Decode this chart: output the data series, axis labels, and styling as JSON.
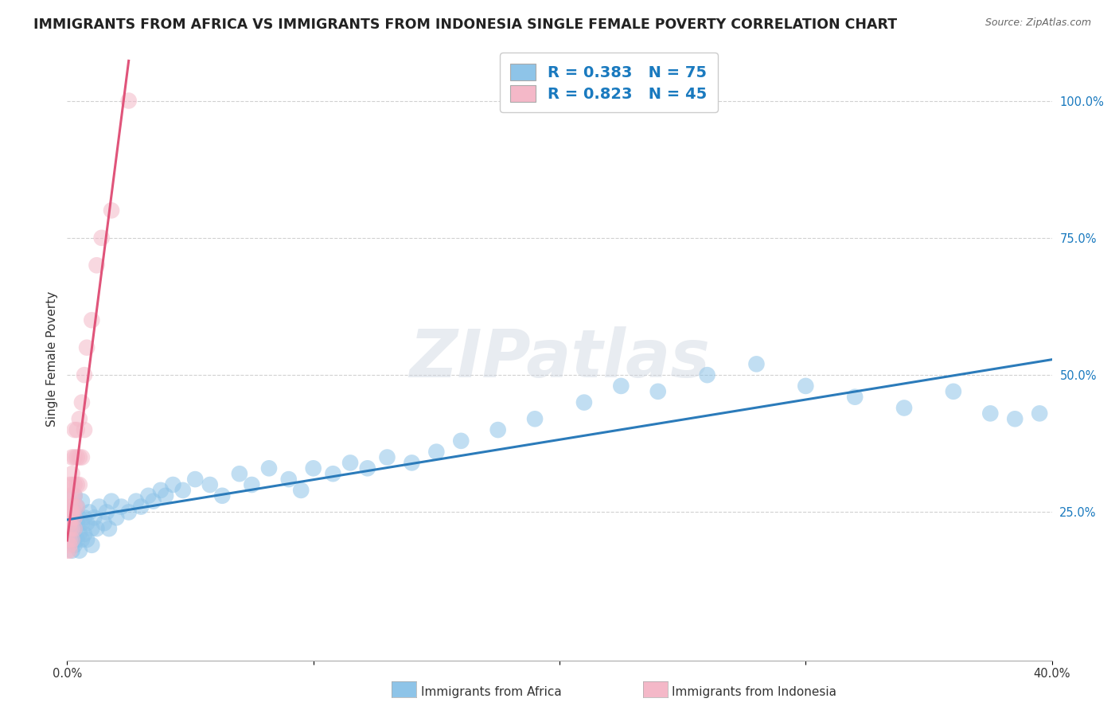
{
  "title": "IMMIGRANTS FROM AFRICA VS IMMIGRANTS FROM INDONESIA SINGLE FEMALE POVERTY CORRELATION CHART",
  "source_text": "Source: ZipAtlas.com",
  "ylabel": "Single Female Poverty",
  "watermark": "ZIPatlas",
  "xlim": [
    0.0,
    0.4
  ],
  "ylim": [
    -0.02,
    1.08
  ],
  "xtick_positions": [
    0.0,
    0.1,
    0.2,
    0.3,
    0.4
  ],
  "xtick_labels": [
    "0.0%",
    "",
    "",
    "",
    "40.0%"
  ],
  "yticks_right": [
    0.25,
    0.5,
    0.75,
    1.0
  ],
  "ytick_labels_right": [
    "25.0%",
    "50.0%",
    "75.0%",
    "100.0%"
  ],
  "africa_color": "#8ec4e8",
  "africa_color_line": "#2b7bba",
  "indonesia_color": "#f4b8c8",
  "indonesia_color_line": "#e0547a",
  "legend_color": "#1a7abf",
  "africa_R": 0.383,
  "africa_N": 75,
  "indonesia_R": 0.823,
  "indonesia_N": 45,
  "background_color": "#ffffff",
  "grid_color": "#cccccc",
  "title_fontsize": 12.5,
  "axis_label_fontsize": 11,
  "tick_fontsize": 10.5,
  "watermark_fontsize": 60,
  "watermark_color": "#cdd5e0",
  "watermark_alpha": 0.45,
  "africa_scatter_x": [
    0.001,
    0.001,
    0.001,
    0.002,
    0.002,
    0.002,
    0.002,
    0.003,
    0.003,
    0.003,
    0.003,
    0.004,
    0.004,
    0.004,
    0.005,
    0.005,
    0.005,
    0.006,
    0.006,
    0.006,
    0.007,
    0.007,
    0.008,
    0.008,
    0.009,
    0.01,
    0.01,
    0.011,
    0.012,
    0.013,
    0.015,
    0.016,
    0.017,
    0.018,
    0.02,
    0.022,
    0.025,
    0.028,
    0.03,
    0.033,
    0.035,
    0.038,
    0.04,
    0.043,
    0.047,
    0.052,
    0.058,
    0.063,
    0.07,
    0.075,
    0.082,
    0.09,
    0.095,
    0.1,
    0.108,
    0.115,
    0.122,
    0.13,
    0.14,
    0.15,
    0.16,
    0.175,
    0.19,
    0.21,
    0.225,
    0.24,
    0.26,
    0.28,
    0.3,
    0.32,
    0.34,
    0.36,
    0.375,
    0.385,
    0.395
  ],
  "africa_scatter_y": [
    0.2,
    0.22,
    0.24,
    0.18,
    0.21,
    0.23,
    0.26,
    0.19,
    0.22,
    0.25,
    0.28,
    0.2,
    0.23,
    0.26,
    0.18,
    0.21,
    0.24,
    0.2,
    0.23,
    0.27,
    0.21,
    0.24,
    0.2,
    0.23,
    0.25,
    0.19,
    0.22,
    0.24,
    0.22,
    0.26,
    0.23,
    0.25,
    0.22,
    0.27,
    0.24,
    0.26,
    0.25,
    0.27,
    0.26,
    0.28,
    0.27,
    0.29,
    0.28,
    0.3,
    0.29,
    0.31,
    0.3,
    0.28,
    0.32,
    0.3,
    0.33,
    0.31,
    0.29,
    0.33,
    0.32,
    0.34,
    0.33,
    0.35,
    0.34,
    0.36,
    0.38,
    0.4,
    0.42,
    0.45,
    0.48,
    0.47,
    0.5,
    0.52,
    0.48,
    0.46,
    0.44,
    0.47,
    0.43,
    0.42,
    0.43
  ],
  "indonesia_scatter_x": [
    0.0,
    0.0,
    0.001,
    0.001,
    0.001,
    0.001,
    0.001,
    0.001,
    0.001,
    0.001,
    0.001,
    0.001,
    0.002,
    0.002,
    0.002,
    0.002,
    0.002,
    0.002,
    0.002,
    0.002,
    0.002,
    0.003,
    0.003,
    0.003,
    0.003,
    0.003,
    0.003,
    0.003,
    0.004,
    0.004,
    0.004,
    0.004,
    0.005,
    0.005,
    0.005,
    0.006,
    0.006,
    0.007,
    0.007,
    0.008,
    0.01,
    0.012,
    0.014,
    0.018,
    0.025
  ],
  "indonesia_scatter_y": [
    0.18,
    0.2,
    0.18,
    0.19,
    0.2,
    0.22,
    0.23,
    0.24,
    0.25,
    0.26,
    0.28,
    0.3,
    0.2,
    0.22,
    0.24,
    0.25,
    0.26,
    0.28,
    0.3,
    0.32,
    0.35,
    0.22,
    0.24,
    0.26,
    0.28,
    0.3,
    0.35,
    0.4,
    0.26,
    0.3,
    0.35,
    0.4,
    0.3,
    0.35,
    0.42,
    0.35,
    0.45,
    0.4,
    0.5,
    0.55,
    0.6,
    0.7,
    0.75,
    0.8,
    1.0
  ]
}
